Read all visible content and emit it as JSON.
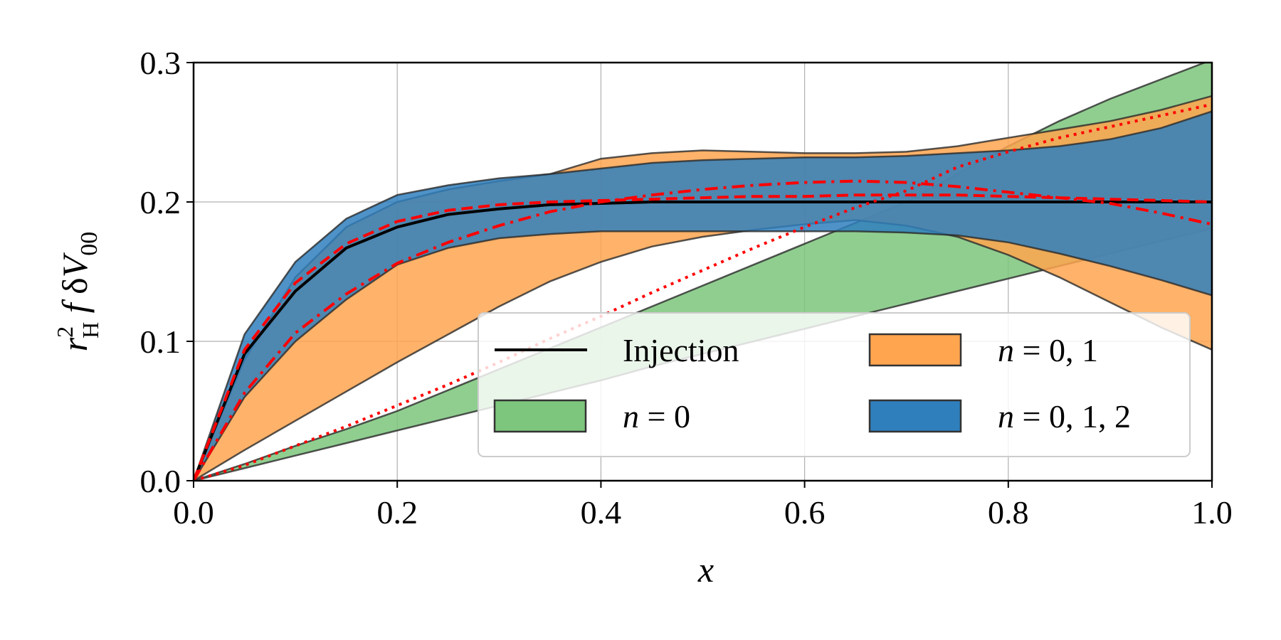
{
  "chart_data": {
    "type": "area",
    "title": "",
    "xlabel": "x",
    "ylabel": "r_H^2 f δV_00",
    "xlim": [
      0.0,
      1.0
    ],
    "ylim": [
      0.0,
      0.3
    ],
    "grid": true,
    "legend_position": "lower-right",
    "x_ticks": [
      "0.0",
      "0.2",
      "0.4",
      "0.6",
      "0.8",
      "1.0"
    ],
    "y_ticks": [
      "0.0",
      "0.1",
      "0.2",
      "0.3"
    ],
    "x": [
      0.0,
      0.05,
      0.1,
      0.15,
      0.2,
      0.25,
      0.3,
      0.35,
      0.4,
      0.45,
      0.5,
      0.55,
      0.6,
      0.65,
      0.7,
      0.75,
      0.8,
      0.85,
      0.9,
      0.95,
      1.0
    ],
    "bands": [
      {
        "name": "n = 0",
        "color": "#7dc67d",
        "lower": [
          0.0,
          0.009,
          0.018,
          0.027,
          0.036,
          0.045,
          0.054,
          0.063,
          0.072,
          0.082,
          0.091,
          0.1,
          0.109,
          0.118,
          0.127,
          0.136,
          0.145,
          0.154,
          0.163,
          0.172,
          0.181
        ],
        "upper": [
          0.0,
          0.012,
          0.025,
          0.037,
          0.05,
          0.065,
          0.08,
          0.095,
          0.11,
          0.125,
          0.14,
          0.155,
          0.17,
          0.185,
          0.2,
          0.22,
          0.24,
          0.258,
          0.274,
          0.288,
          0.302
        ]
      },
      {
        "name": "n = 0, 1",
        "color": "#ffa54f",
        "lower": [
          0.0,
          0.022,
          0.043,
          0.064,
          0.085,
          0.105,
          0.125,
          0.143,
          0.157,
          0.168,
          0.175,
          0.18,
          0.184,
          0.187,
          0.183,
          0.175,
          0.162,
          0.146,
          0.128,
          0.11,
          0.094
        ],
        "upper": [
          0.0,
          0.087,
          0.146,
          0.182,
          0.2,
          0.209,
          0.215,
          0.22,
          0.231,
          0.235,
          0.237,
          0.236,
          0.235,
          0.235,
          0.236,
          0.24,
          0.246,
          0.252,
          0.258,
          0.266,
          0.276
        ]
      },
      {
        "name": "n = 0, 1, 2",
        "color": "#2f7fbd",
        "lower": [
          0.0,
          0.06,
          0.1,
          0.13,
          0.155,
          0.167,
          0.174,
          0.177,
          0.179,
          0.179,
          0.179,
          0.179,
          0.179,
          0.179,
          0.178,
          0.176,
          0.171,
          0.163,
          0.154,
          0.144,
          0.133
        ],
        "upper": [
          0.0,
          0.105,
          0.157,
          0.188,
          0.205,
          0.212,
          0.217,
          0.22,
          0.224,
          0.228,
          0.23,
          0.231,
          0.232,
          0.232,
          0.233,
          0.235,
          0.237,
          0.24,
          0.245,
          0.253,
          0.265
        ]
      }
    ],
    "lines": [
      {
        "name": "Injection",
        "color": "#000000",
        "style": "solid",
        "values": [
          0.0,
          0.091,
          0.136,
          0.167,
          0.182,
          0.191,
          0.195,
          0.198,
          0.199,
          0.2,
          0.2,
          0.2,
          0.2,
          0.2,
          0.2,
          0.2,
          0.2,
          0.2,
          0.2,
          0.2,
          0.2
        ]
      },
      {
        "color": "#ff0000",
        "style": "dashed",
        "values": [
          0.0,
          0.094,
          0.142,
          0.17,
          0.186,
          0.194,
          0.198,
          0.2,
          0.201,
          0.202,
          0.203,
          0.204,
          0.204,
          0.205,
          0.205,
          0.205,
          0.204,
          0.203,
          0.202,
          0.201,
          0.2
        ]
      },
      {
        "color": "#ff0000",
        "style": "dashdot",
        "values": [
          0.0,
          0.063,
          0.106,
          0.134,
          0.156,
          0.171,
          0.183,
          0.193,
          0.2,
          0.205,
          0.209,
          0.212,
          0.214,
          0.215,
          0.214,
          0.211,
          0.207,
          0.203,
          0.199,
          0.192,
          0.184
        ]
      },
      {
        "color": "#ff0000",
        "style": "dotted",
        "values": [
          0.0,
          0.011,
          0.025,
          0.039,
          0.054,
          0.069,
          0.085,
          0.102,
          0.118,
          0.135,
          0.151,
          0.167,
          0.182,
          0.196,
          0.208,
          0.225,
          0.236,
          0.246,
          0.254,
          0.262,
          0.27
        ]
      }
    ]
  }
}
